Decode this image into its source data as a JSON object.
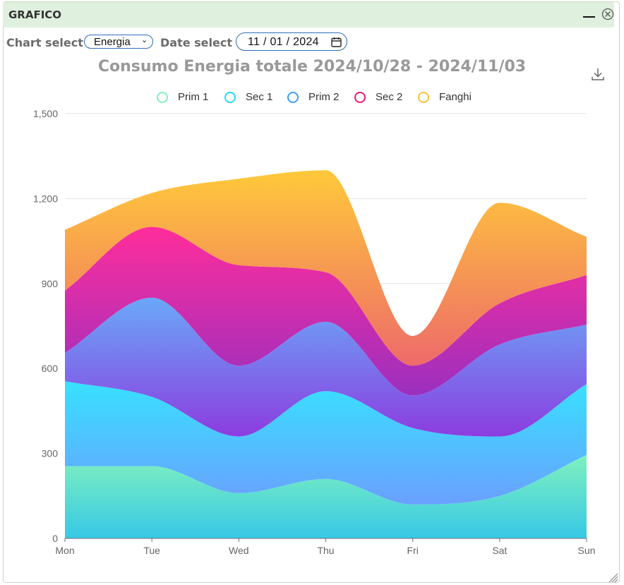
{
  "window": {
    "title": "GRAFICO"
  },
  "controls": {
    "chart_select_label": "Chart select",
    "chart_select_value": "Energia",
    "date_select_label": "Date select",
    "date_value": "11 / 01 / 2024"
  },
  "chart_data": {
    "type": "area",
    "stacked": true,
    "smooth": true,
    "title": "Consumo Energia totale 2024/10/28 - 2024/11/03",
    "categories": [
      "Mon",
      "Tue",
      "Wed",
      "Thu",
      "Fri",
      "Sat",
      "Sun"
    ],
    "ylim": [
      0,
      1500
    ],
    "yticks": [
      0,
      300,
      600,
      900,
      1200,
      1500
    ],
    "ytick_labels": [
      "0",
      "300",
      "600",
      "900",
      "1,200",
      "1,500"
    ],
    "grid": true,
    "legend_position": "top-center",
    "series": [
      {
        "name": "Prim 1",
        "values": [
          255,
          255,
          160,
          210,
          120,
          150,
          295
        ],
        "color_top": "#80f1be",
        "color_bottom": "#37c8e6",
        "legend_color": "#80f1be"
      },
      {
        "name": "Sec 1",
        "values": [
          300,
          245,
          200,
          310,
          270,
          210,
          250
        ],
        "color_top": "#37e1ff",
        "color_bottom": "#6aa0ff",
        "legend_color": "#27d8ff"
      },
      {
        "name": "Prim 2",
        "values": [
          100,
          350,
          250,
          245,
          115,
          325,
          210
        ],
        "color_top": "#6aa8f8",
        "color_bottom": "#8c3ce0",
        "legend_color": "#3b9ef0"
      },
      {
        "name": "Sec 2",
        "values": [
          220,
          250,
          355,
          175,
          105,
          145,
          175
        ],
        "color_top": "#ff2d9b",
        "color_bottom": "#9b2fbf",
        "legend_color": "#ec1a7e"
      },
      {
        "name": "Fanghi",
        "values": [
          215,
          120,
          305,
          360,
          105,
          355,
          135
        ],
        "color_top": "#ffc93a",
        "color_bottom": "#ee6a6a",
        "legend_color": "#f9c23c"
      }
    ]
  }
}
